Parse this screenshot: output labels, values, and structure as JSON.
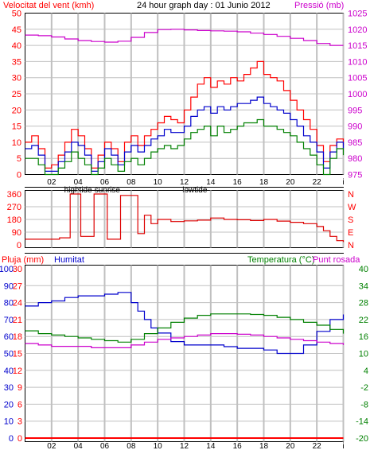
{
  "header": {
    "left_label": "Velocitat del vent (kmh)",
    "title": "24 hour graph day : 01 Junio 2012",
    "right_label": "Pressió (mb)"
  },
  "panel2": {
    "left_ticks": [
      "360",
      "270",
      "180",
      "90",
      "0"
    ],
    "right_ticks": [
      "N",
      "W",
      "S",
      "E",
      "N"
    ]
  },
  "panel3_header": {
    "pluja": "Pluja (mm)",
    "humitat": "Humitat",
    "temperatura": "Temperatura (°C)",
    "punt_rosada": "Punt rosada"
  },
  "x_axis": {
    "hour_labels": [
      "02",
      "04",
      "06",
      "08",
      "10",
      "12",
      "14",
      "16",
      "18",
      "20",
      "22",
      "i"
    ],
    "events": [
      "hightide",
      "sunrise",
      "lowtide"
    ]
  },
  "colors": {
    "wind_max": "#ff0000",
    "wind_avg": "#0000cc",
    "wind_min": "#008000",
    "pressure": "#cc00cc",
    "direction": "#dd0000",
    "humidity": "#0000cc",
    "temperature": "#008000",
    "dewpoint": "#cc00cc",
    "rain": "#ff0000",
    "grid": "#c0c0c0"
  },
  "chart_data": [
    {
      "type": "line",
      "xlabel": "",
      "xlim": [
        0,
        24
      ],
      "y_left": {
        "label": "Velocitat del vent (kmh)",
        "range": [
          0,
          50
        ],
        "ticks": [
          0,
          5,
          10,
          15,
          20,
          25,
          30,
          35,
          40,
          45,
          50
        ]
      },
      "y_right": {
        "label": "Pressió (mb)",
        "range": [
          975,
          1025
        ],
        "ticks": [
          975,
          980,
          985,
          990,
          995,
          1000,
          1005,
          1010,
          1015,
          1020,
          1025
        ]
      },
      "series": [
        {
          "name": "wind_max",
          "axis": "left",
          "x": [
            0,
            0.5,
            1,
            1.5,
            2,
            2.5,
            3,
            3.5,
            4,
            4.5,
            5,
            5.5,
            6,
            6.5,
            7,
            7.5,
            8,
            8.5,
            9,
            9.5,
            10,
            10.5,
            11,
            11.5,
            12,
            12.5,
            13,
            13.5,
            14,
            14.5,
            15,
            15.5,
            16,
            16.5,
            17,
            17.5,
            18,
            18.5,
            19,
            19.5,
            20,
            20.5,
            21,
            21.5,
            22,
            22.5,
            23,
            23.5,
            24
          ],
          "y": [
            10,
            12,
            8,
            2,
            3,
            6,
            10,
            14,
            12,
            8,
            2,
            6,
            10,
            8,
            4,
            10,
            12,
            9,
            12,
            14,
            16,
            18,
            17,
            16,
            20,
            24,
            28,
            30,
            27,
            29,
            28,
            30,
            29,
            31,
            33,
            35,
            31,
            30,
            29,
            26,
            23,
            20,
            17,
            14,
            9,
            4,
            9,
            11,
            9
          ]
        },
        {
          "name": "wind_avg",
          "axis": "left",
          "x": [
            0,
            0.5,
            1,
            1.5,
            2,
            2.5,
            3,
            3.5,
            4,
            4.5,
            5,
            5.5,
            6,
            6.5,
            7,
            7.5,
            8,
            8.5,
            9,
            9.5,
            10,
            10.5,
            11,
            11.5,
            12,
            12.5,
            13,
            13.5,
            14,
            14.5,
            15,
            15.5,
            16,
            16.5,
            17,
            17.5,
            18,
            18.5,
            19,
            19.5,
            20,
            20.5,
            21,
            21.5,
            22,
            22.5,
            23,
            23.5,
            24
          ],
          "y": [
            8,
            9,
            6,
            1,
            1,
            4,
            7,
            10,
            9,
            6,
            1,
            4,
            8,
            6,
            3,
            7,
            9,
            7,
            9,
            11,
            12,
            14,
            13,
            13,
            15,
            18,
            20,
            21,
            19,
            21,
            20,
            21,
            22,
            22,
            23,
            24,
            22,
            21,
            20,
            19,
            17,
            15,
            12,
            10,
            7,
            2,
            7,
            10,
            8
          ]
        },
        {
          "name": "wind_min",
          "axis": "left",
          "x": [
            0,
            0.5,
            1,
            1.5,
            2,
            2.5,
            3,
            3.5,
            4,
            4.5,
            5,
            5.5,
            6,
            6.5,
            7,
            7.5,
            8,
            8.5,
            9,
            9.5,
            10,
            10.5,
            11,
            11.5,
            12,
            12.5,
            13,
            13.5,
            14,
            14.5,
            15,
            15.5,
            16,
            16.5,
            17,
            17.5,
            18,
            18.5,
            19,
            19.5,
            20,
            20.5,
            21,
            21.5,
            22,
            22.5,
            23,
            23.5,
            24
          ],
          "y": [
            5,
            5,
            3,
            0,
            0,
            2,
            4,
            7,
            5,
            3,
            0,
            2,
            5,
            3,
            1,
            4,
            5,
            3,
            5,
            7,
            8,
            9,
            8,
            9,
            11,
            13,
            14,
            15,
            12,
            15,
            13,
            14,
            15,
            16,
            16,
            17,
            15,
            15,
            14,
            13,
            12,
            10,
            8,
            6,
            3,
            0,
            5,
            8,
            6
          ]
        },
        {
          "name": "pressure",
          "axis": "right",
          "x": [
            0,
            1,
            2,
            3,
            4,
            5,
            6,
            7,
            8,
            9,
            10,
            11,
            12,
            13,
            14,
            15,
            16,
            17,
            18,
            19,
            20,
            21,
            22,
            23,
            24
          ],
          "y": [
            1018.2,
            1018.0,
            1017.6,
            1017.0,
            1016.5,
            1016.2,
            1016.0,
            1016.3,
            1017.5,
            1019.0,
            1019.9,
            1020.0,
            1019.8,
            1019.6,
            1019.5,
            1019.4,
            1019.2,
            1018.8,
            1018.4,
            1017.8,
            1017.2,
            1016.5,
            1015.6,
            1015.0,
            1015.0
          ]
        }
      ]
    },
    {
      "type": "line",
      "xlim": [
        0,
        24
      ],
      "y_left": {
        "range": [
          0,
          360
        ],
        "ticks": [
          0,
          90,
          180,
          270,
          360
        ]
      },
      "series": [
        {
          "name": "wind_direction",
          "x": [
            0,
            2.2,
            2.6,
            3.2,
            3.4,
            4.0,
            4.2,
            5.0,
            5.2,
            6.0,
            6.2,
            7.0,
            7.2,
            8.0,
            8.5,
            9,
            9.5,
            10,
            11,
            12,
            13,
            14,
            15,
            16,
            17,
            18,
            19,
            20,
            21,
            22,
            22.5,
            23,
            23.5,
            24
          ],
          "y": [
            40,
            40,
            50,
            50,
            360,
            360,
            60,
            60,
            360,
            360,
            40,
            40,
            350,
            350,
            80,
            210,
            150,
            180,
            165,
            170,
            175,
            190,
            180,
            178,
            172,
            180,
            168,
            160,
            150,
            130,
            100,
            60,
            30,
            20
          ]
        }
      ]
    },
    {
      "type": "line",
      "xlim": [
        0,
        24
      ],
      "y_left": {
        "label": "Pluja (mm)",
        "range": [
          0,
          30
        ],
        "ticks": [
          0,
          3,
          6,
          9,
          12,
          15,
          18,
          21,
          24,
          27,
          30
        ]
      },
      "y_left2": {
        "label": "Humitat",
        "range": [
          0,
          100
        ],
        "ticks": [
          0,
          10,
          20,
          30,
          40,
          50,
          60,
          70,
          80,
          90,
          100
        ]
      },
      "y_right": {
        "label": "Temperatura (°C)",
        "range": [
          -20,
          40
        ],
        "ticks": [
          -20,
          -14,
          -8,
          -2,
          4,
          10,
          16,
          22,
          28,
          34,
          40
        ]
      },
      "series": [
        {
          "name": "rain",
          "axis": "left",
          "x": [
            0,
            24
          ],
          "y": [
            0,
            0
          ]
        },
        {
          "name": "humidity",
          "axis": "left2",
          "x": [
            0,
            1,
            2,
            3,
            4,
            5,
            6,
            7,
            7.5,
            8,
            8.5,
            9,
            9.5,
            10,
            11,
            12,
            13,
            14,
            15,
            16,
            17,
            18,
            19,
            20,
            21,
            22,
            23,
            24
          ],
          "y": [
            78,
            80,
            81,
            83,
            84,
            84,
            85,
            86,
            86,
            80,
            75,
            70,
            65,
            62,
            57,
            55,
            55,
            55,
            54,
            53,
            53,
            52,
            50,
            50,
            55,
            63,
            70,
            73
          ]
        },
        {
          "name": "temperature",
          "axis": "right",
          "x": [
            0,
            1,
            2,
            3,
            4,
            5,
            6,
            7,
            8,
            9,
            10,
            11,
            12,
            13,
            14,
            15,
            16,
            17,
            18,
            19,
            20,
            21,
            22,
            23,
            24
          ],
          "y": [
            18,
            17,
            16.5,
            16,
            15.5,
            15,
            14.5,
            14,
            15,
            17,
            19,
            21,
            22.5,
            23.5,
            24,
            24,
            24,
            23.8,
            23.5,
            22.8,
            22,
            21,
            20,
            18.5,
            17
          ]
        },
        {
          "name": "dewpoint",
          "axis": "right",
          "x": [
            0,
            1,
            2,
            3,
            4,
            5,
            6,
            7,
            8,
            9,
            10,
            11,
            12,
            13,
            14,
            15,
            16,
            17,
            18,
            19,
            20,
            21,
            22,
            23,
            24
          ],
          "y": [
            13.5,
            13,
            12.5,
            12.5,
            12.5,
            12,
            12,
            12,
            13,
            14,
            15,
            15.5,
            16,
            16.5,
            17,
            17,
            16.8,
            16.5,
            16,
            15.5,
            15,
            14.5,
            14,
            13.5,
            13
          ]
        }
      ]
    }
  ]
}
